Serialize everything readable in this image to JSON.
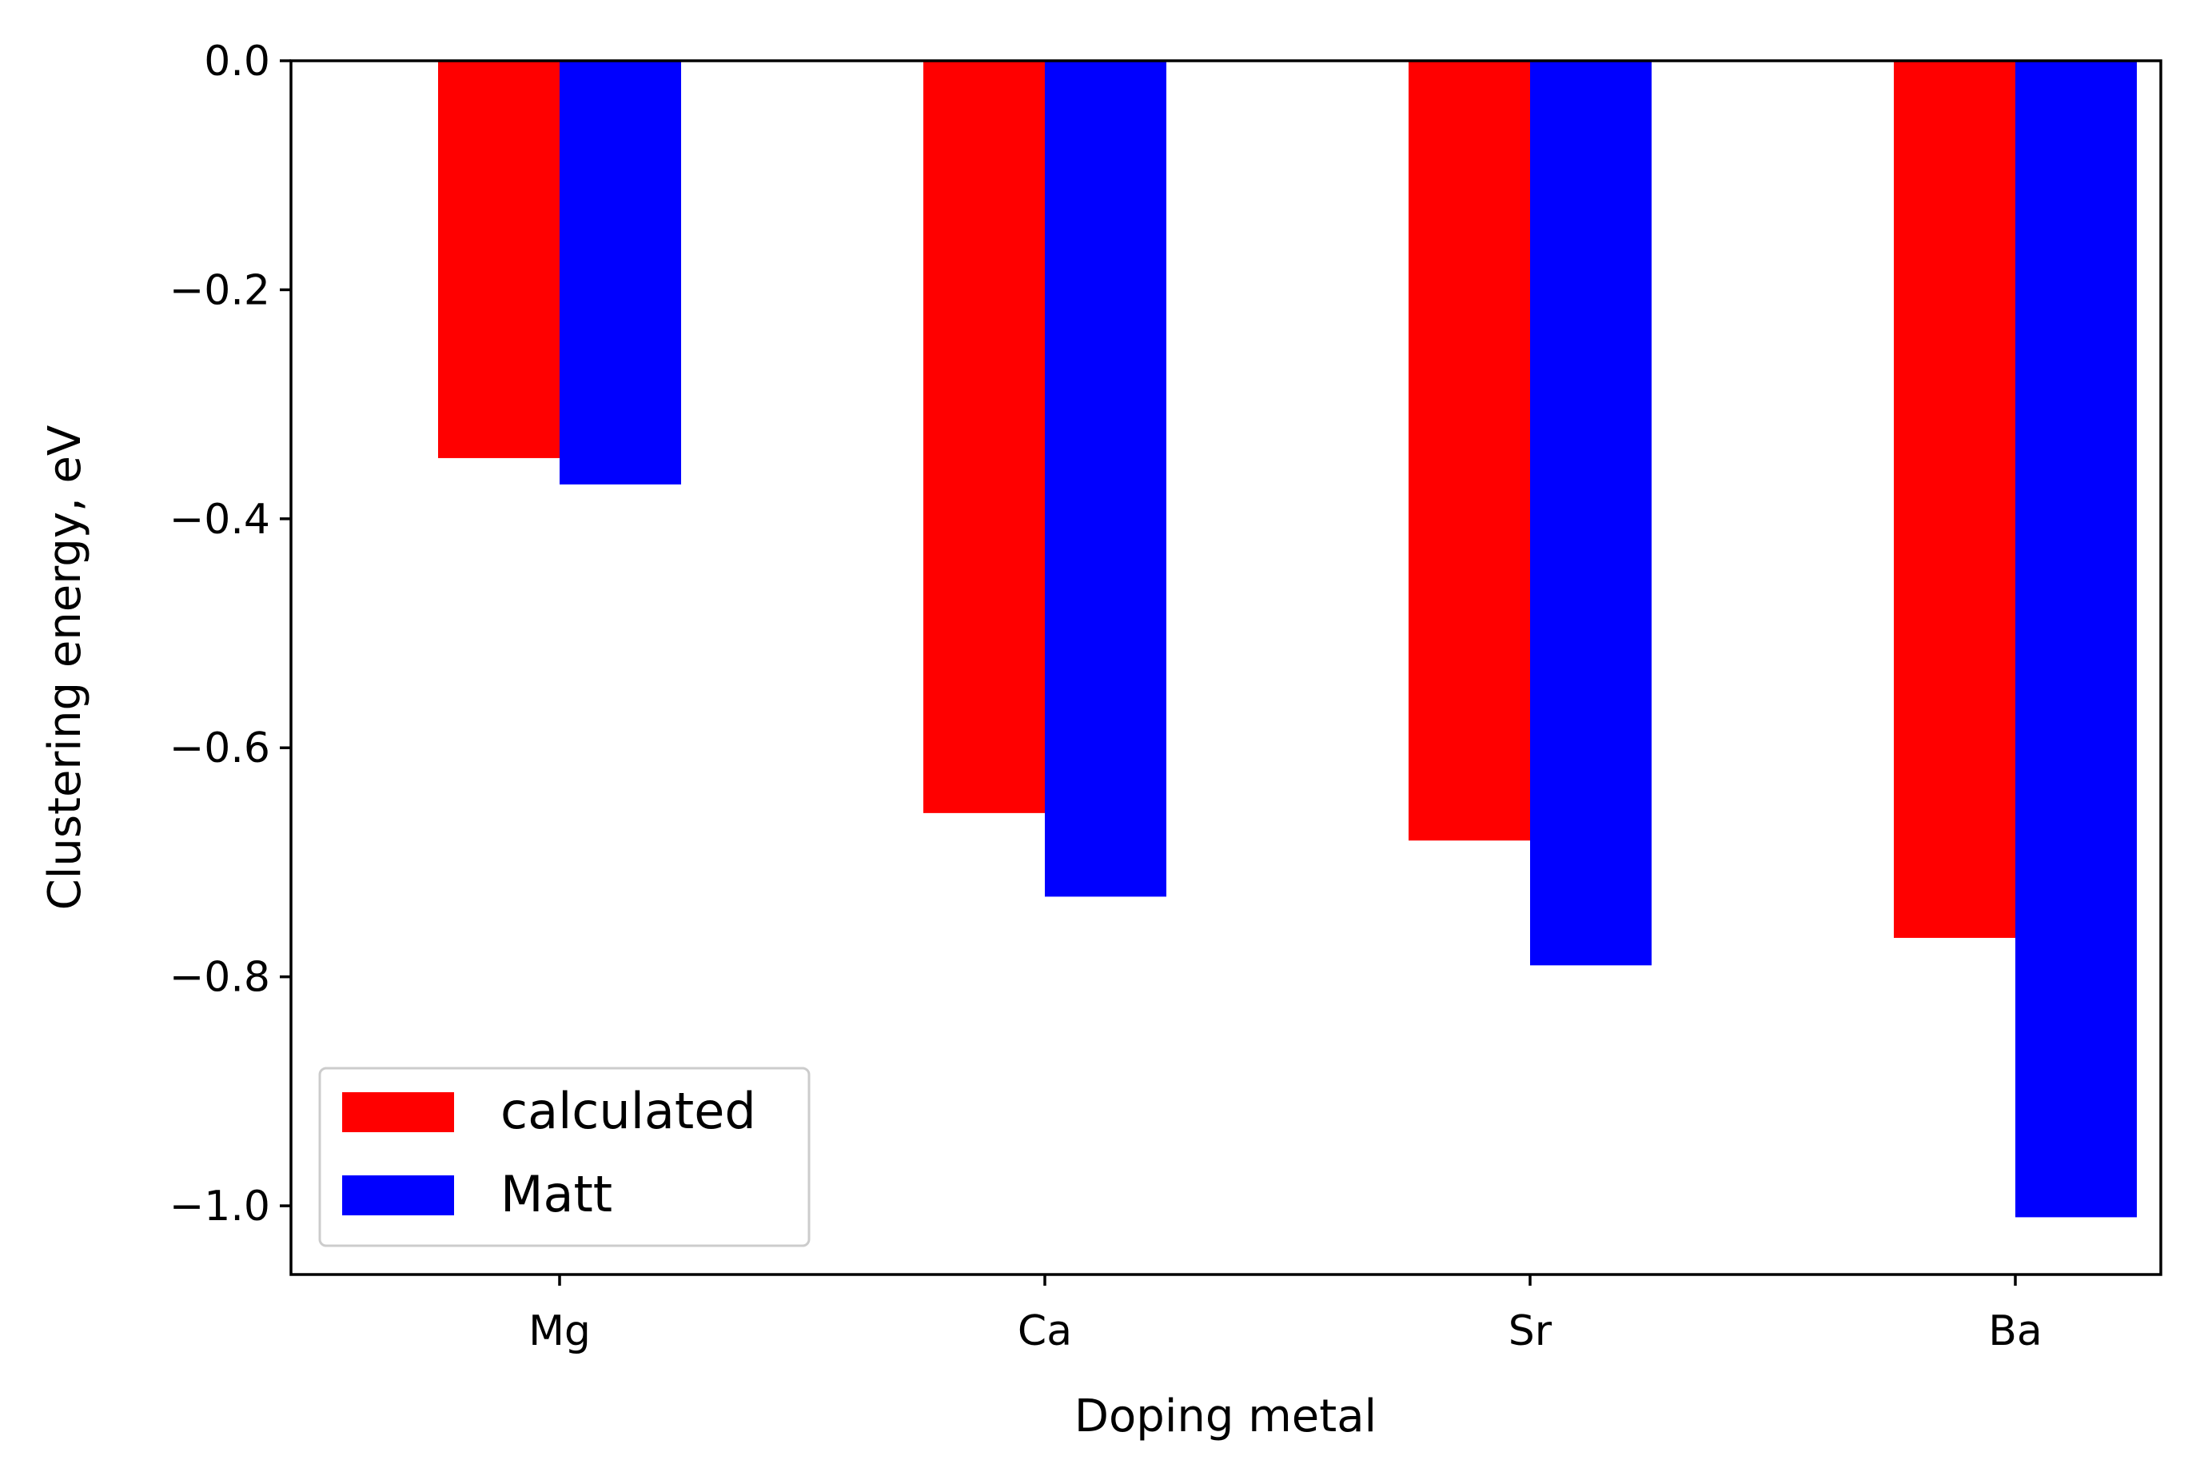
{
  "chart_data": {
    "type": "bar",
    "title": "",
    "xlabel": "Doping metal",
    "ylabel": "Clustering energy, eV",
    "categories": [
      "Mg",
      "Ca",
      "Sr",
      "Ba"
    ],
    "series": [
      {
        "name": "calculated",
        "color": "#ff0000",
        "values": [
          -0.347,
          -0.657,
          -0.681,
          -0.766
        ]
      },
      {
        "name": "Matt",
        "color": "#0000ff",
        "values": [
          -0.37,
          -0.73,
          -0.79,
          -1.01
        ]
      }
    ],
    "ylim": [
      -1.06,
      0.0
    ],
    "yticks": [
      0.0,
      -0.2,
      -0.4,
      -0.6,
      -0.8,
      -1.0
    ],
    "ytick_labels": [
      "0.0",
      "−0.2",
      "−0.4",
      "−0.6",
      "−0.8",
      "−1.0"
    ],
    "grid": false,
    "legend_position": "lower-left"
  }
}
